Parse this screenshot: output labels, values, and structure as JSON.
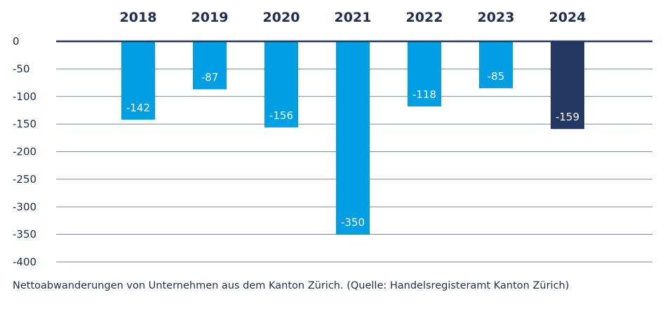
{
  "chart_data": {
    "type": "bar",
    "categories": [
      "2018",
      "2019",
      "2020",
      "2021",
      "2022",
      "2023",
      "2024"
    ],
    "values": [
      -142,
      -87,
      -156,
      -350,
      -118,
      -85,
      -159
    ],
    "data_labels": [
      "-142",
      "-87",
      "-156",
      "-350",
      "-118",
      "-85",
      "-159"
    ],
    "y_ticks": [
      "0",
      "-50",
      "-100",
      "-150",
      "-200",
      "-250",
      "-300",
      "-350",
      "-400"
    ],
    "ylim": [
      -400,
      0
    ],
    "category_axis_position": "top",
    "grid": true,
    "highlight_category": "2024",
    "colors": {
      "bar": "#009fe3",
      "highlight": "#253763",
      "axis": "#253763",
      "grid": "#1f2d4e",
      "text": "#1f2d4e",
      "label_text": "#ffffff"
    }
  },
  "caption": "Nettoabwanderungen von Unternehmen aus dem Kanton Zürich. (Quelle: Handelsregisteramt Kanton Zürich)"
}
